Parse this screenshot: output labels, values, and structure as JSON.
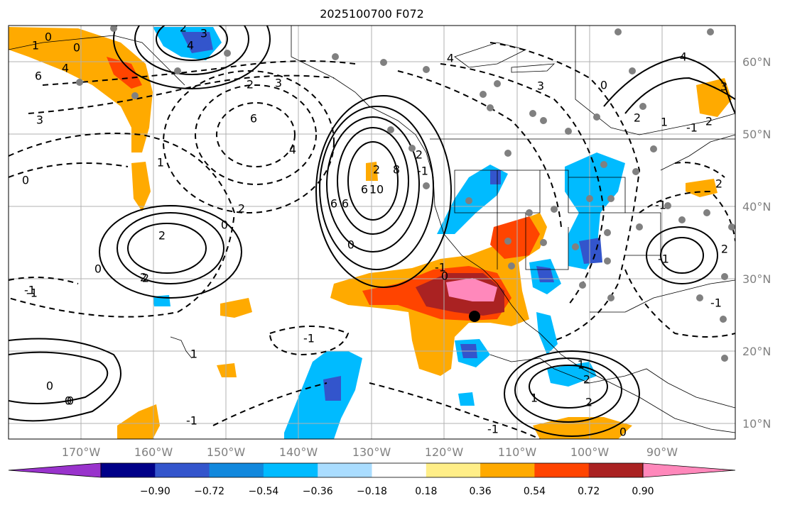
{
  "title": "2025100700 F072",
  "lon_labels": [
    "170°W",
    "160°W",
    "150°W",
    "140°W",
    "130°W",
    "120°W",
    "110°W",
    "100°W",
    "90°W"
  ],
  "lat_labels": [
    "60°N",
    "50°N",
    "40°N",
    "30°N",
    "20°N",
    "10°N"
  ],
  "colorbar": {
    "tick_labels": [
      "−0.90",
      "−0.72",
      "−0.54",
      "−0.36",
      "−0.18",
      "0.18",
      "0.36",
      "0.54",
      "0.72",
      "0.90"
    ],
    "colors": [
      "#9933cc",
      "#000088",
      "#3355cc",
      "#1188dd",
      "#00bbff",
      "#aaddff",
      "#ffffff",
      "#ffee88",
      "#ffaa00",
      "#ff4400",
      "#aa2222",
      "#ff88bb"
    ]
  },
  "contour_labels": [
    "0",
    "0",
    "1",
    "4",
    "6",
    "3",
    "4",
    "2",
    "2",
    "3",
    "-1",
    "2",
    "2",
    "-1",
    "4",
    "6",
    "3",
    "2",
    "0",
    "0",
    "2",
    "1",
    "-1",
    "1",
    "0",
    "4",
    "3",
    "6",
    "6",
    "2",
    "6",
    "8",
    "10",
    "0",
    "-1",
    "0",
    "-1",
    "2",
    "1",
    "2",
    "0",
    "-1",
    "-1",
    "-1",
    "2",
    "-1",
    "1",
    "0",
    "2",
    "-1",
    "-1",
    "3",
    "2",
    "-1",
    "2",
    "0",
    "2",
    "0",
    "4",
    "0"
  ]
}
